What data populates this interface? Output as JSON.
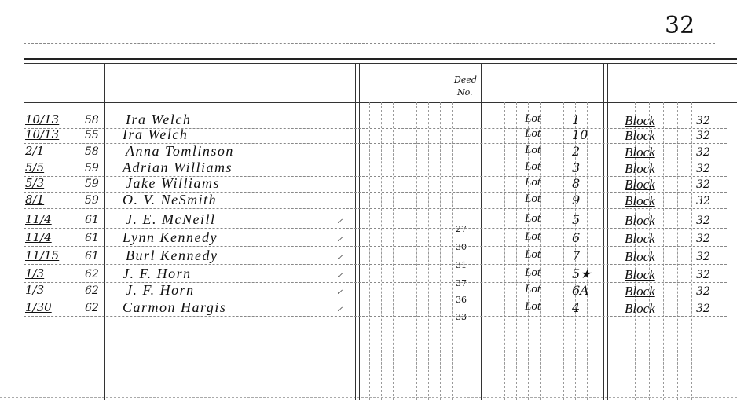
{
  "page_number": "32",
  "header": {
    "deed_no_label_line1": "Deed",
    "deed_no_label_line2": "No."
  },
  "rows": [
    {
      "date": "10/13",
      "year": "58",
      "name": "Ira Welch",
      "deed_no": "",
      "lot_label": "Lot",
      "lot": "1",
      "block_label": "Block",
      "block": "32"
    },
    {
      "date": "10/13",
      "year": "55",
      "name": "Ira Welch",
      "deed_no": "",
      "lot_label": "Lot",
      "lot": "10",
      "block_label": "Block",
      "block": "32"
    },
    {
      "date": "2/1",
      "year": "58",
      "name": "Anna Tomlinson",
      "deed_no": "",
      "lot_label": "Lot",
      "lot": "2",
      "block_label": "Block",
      "block": "32"
    },
    {
      "date": "5/5",
      "year": "59",
      "name": "Adrian Williams",
      "deed_no": "",
      "lot_label": "Lot",
      "lot": "3",
      "block_label": "Block",
      "block": "32"
    },
    {
      "date": "5/3",
      "year": "59",
      "name": "Jake Williams",
      "deed_no": "",
      "lot_label": "Lot",
      "lot": "8",
      "block_label": "Block",
      "block": "32"
    },
    {
      "date": "8/1",
      "year": "59",
      "name": "O. V. NeSmith",
      "deed_no": "",
      "lot_label": "Lot",
      "lot": "9",
      "block_label": "Block",
      "block": "32"
    },
    {
      "date": "11/4",
      "year": "61",
      "name": "J. E. McNeill",
      "deed_no": "27",
      "lot_label": "Lot",
      "lot": "5",
      "block_label": "Block",
      "block": "32"
    },
    {
      "date": "11/4",
      "year": "61",
      "name": "Lynn Kennedy",
      "deed_no": "30",
      "lot_label": "Lot",
      "lot": "6",
      "block_label": "Block",
      "block": "32"
    },
    {
      "date": "11/15",
      "year": "61",
      "name": "Burl Kennedy",
      "deed_no": "31",
      "lot_label": "Lot",
      "lot": "7",
      "block_label": "Block",
      "block": "32"
    },
    {
      "date": "1/3",
      "year": "62",
      "name": "J. F. Horn",
      "deed_no": "37",
      "lot_label": "Lot",
      "lot": "5★",
      "block_label": "Block",
      "block": "32"
    },
    {
      "date": "1/3",
      "year": "62",
      "name": "J. F. Horn",
      "deed_no": "36",
      "lot_label": "Lot",
      "lot": "6A",
      "block_label": "Block",
      "block": "32"
    },
    {
      "date": "1/30",
      "year": "62",
      "name": "Carmon Hargis",
      "deed_no": "33",
      "lot_label": "Lot",
      "lot": "4",
      "block_label": "Block",
      "block": "32"
    }
  ]
}
